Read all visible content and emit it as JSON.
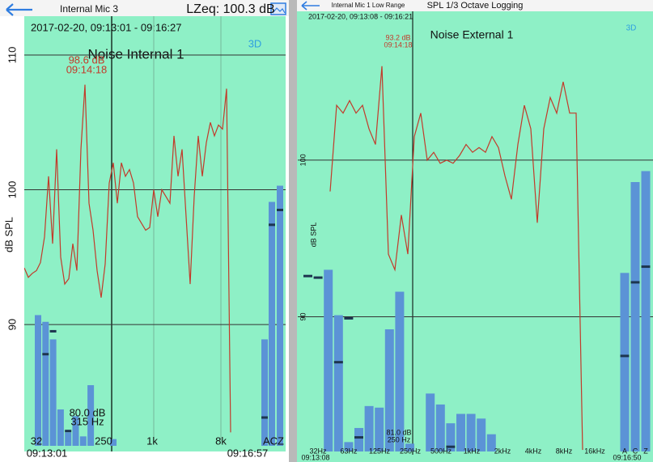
{
  "left": {
    "header_title": "Internal Mic 3",
    "lzeq": "LZeq: 100.3 dB",
    "time_range": "2017-02-20, 09:13:01 - 09:16:27",
    "mode": "3D",
    "series_name": "Noise Internal 1",
    "cursor_value": "98.6 dB",
    "cursor_time": "09:14:18",
    "y_label": "dB SPL",
    "ylim": [
      81,
      113
    ],
    "yticks": [
      90,
      100,
      110
    ],
    "bar_readout_value": "80.0 dB",
    "bar_readout_freq": "315 Hz",
    "x_labels": [
      "32",
      "250",
      "1k",
      "8k",
      "ACZ"
    ],
    "start_time": "09:13:01",
    "end_time": "09:16:57",
    "line_color": "#c23a2a",
    "bar_color": "#5b93d6",
    "line": [
      94.2,
      93.5,
      93.8,
      94.0,
      94.6,
      96.5,
      101,
      96,
      103,
      95,
      93,
      93.4,
      96,
      94,
      103,
      107.8,
      99,
      97,
      94,
      92,
      94.5,
      100.5,
      102,
      99,
      102,
      101,
      101.5,
      100.5,
      98,
      97.5,
      97,
      97.2,
      100,
      98,
      100,
      99.5,
      99,
      104,
      101,
      103,
      98,
      93,
      99.5,
      104,
      101,
      103.5,
      105,
      104,
      104.8,
      104.5,
      107.5,
      82,
      null,
      null,
      null,
      null,
      null,
      null,
      null,
      null,
      null,
      null,
      null,
      null,
      null
    ],
    "bands": [
      90.7,
      90.2,
      88.9,
      83.7,
      82,
      83.2,
      81.7,
      85.5,
      null,
      null,
      81.5,
      null,
      null,
      null,
      null,
      null,
      null,
      null,
      null,
      null,
      null,
      null,
      null,
      null,
      null
    ],
    "band_markers": [
      null,
      87.8,
      89.5,
      null,
      82.1,
      null,
      null,
      null,
      null,
      null,
      null,
      null,
      null,
      null,
      null,
      null,
      null,
      null,
      null,
      null,
      null,
      null,
      null,
      null,
      null
    ],
    "acz": [
      88.9,
      99.1,
      100.3
    ],
    "acz_markers": [
      83.1,
      97.4,
      98.5
    ]
  },
  "right": {
    "header_sub": "Internal Mic 1 Low Range",
    "header_title": "SPL 1/3 Octave Logging",
    "time_range": "2017-02-20, 09:13:08 - 09:16:21",
    "mode": "3D",
    "series_name": "Noise External 1",
    "cursor_value": "93.2 dB",
    "cursor_time": "09:14:18",
    "y_label": "dB SPL",
    "ylim": [
      81.4,
      109.5
    ],
    "yticks": [
      90,
      100
    ],
    "bar_readout_value": "81.0 dB",
    "bar_readout_freq": "250 Hz",
    "x_labels": [
      "32Hz",
      "63Hz",
      "125Hz",
      "250Hz",
      "500Hz",
      "1kHz",
      "2kHz",
      "4kHz",
      "8kHz",
      "16kHz",
      "A",
      "C",
      "Z"
    ],
    "start_time": "09:13:08",
    "end_time": "09:16:50",
    "line_color": "#c23a2a",
    "bar_color": "#5b93d6",
    "line": [
      null,
      null,
      null,
      null,
      98,
      103.5,
      103,
      103.8,
      103,
      103.5,
      102,
      101,
      106,
      94,
      93,
      96.5,
      94,
      101.5,
      103,
      100,
      100.5,
      99.8,
      100,
      99.8,
      100.3,
      101,
      100.5,
      100.8,
      100.5,
      101.5,
      100.8,
      99,
      97.5,
      101,
      103.5,
      102,
      96,
      102,
      104,
      103,
      105,
      103,
      103,
      81.5,
      null,
      null,
      null,
      null,
      null,
      null,
      null,
      null,
      null,
      null
    ],
    "bands": [
      null,
      null,
      93,
      90.1,
      82,
      82.9,
      84.3,
      84.2,
      89.2,
      91.6,
      81.9,
      null,
      85.1,
      84.4,
      83.2,
      83.8,
      83.8,
      83.5,
      82.5,
      null,
      null,
      null,
      null,
      null,
      null,
      null,
      null,
      null,
      null,
      null
    ],
    "band_markers": [
      92.6,
      92.5,
      null,
      87.1,
      89.9,
      82.3,
      null,
      null,
      null,
      null,
      null,
      null,
      null,
      null,
      81.7,
      null,
      null,
      null,
      null,
      null,
      null,
      null,
      null,
      null,
      null,
      null,
      null,
      null,
      null,
      null
    ],
    "acz": [
      92.8,
      98.6,
      99.3
    ],
    "acz_markers": [
      87.5,
      92.2,
      93.2
    ]
  }
}
